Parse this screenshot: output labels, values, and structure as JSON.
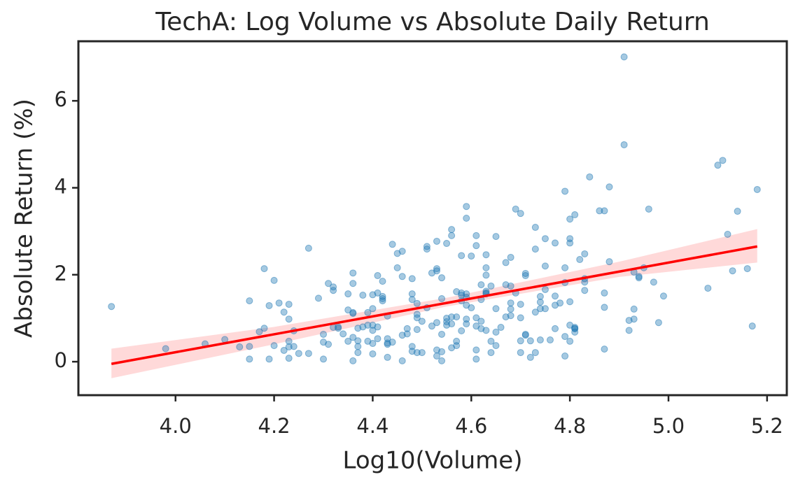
{
  "chart_data": {
    "type": "scatter",
    "title": "TechA: Log Volume vs Absolute Daily Return",
    "xlabel": "Log10(Volume)",
    "ylabel": "Absolute Return (%)",
    "xlim": [
      3.803,
      5.24
    ],
    "ylim": [
      -0.77,
      7.37
    ],
    "xticks": [
      {
        "value": 4.0,
        "label": "4.0"
      },
      4.2,
      4.4,
      4.6,
      4.8,
      {
        "value": 5.0,
        "label": "5.0"
      },
      5.2
    ],
    "yticks": [
      0,
      2,
      4,
      6
    ],
    "series": [
      {
        "color": "#1f77b4",
        "x": [
          3.87,
          3.98,
          4.06,
          4.1,
          4.13,
          4.15,
          4.15,
          4.15,
          4.17,
          4.18,
          4.18,
          4.19,
          4.19,
          4.2,
          4.2,
          4.21,
          4.22,
          4.22,
          4.23,
          4.23,
          4.23,
          4.23,
          4.23,
          4.24,
          4.24,
          4.25,
          4.27,
          4.27,
          4.29,
          4.3,
          4.3,
          4.3,
          4.31,
          4.31,
          4.32,
          4.32,
          4.32,
          4.33,
          4.33,
          4.34,
          4.35,
          4.35,
          4.35,
          4.36,
          4.36,
          4.36,
          4.36,
          4.36,
          4.36,
          4.37,
          4.37,
          4.37,
          4.37,
          4.38,
          4.38,
          4.39,
          4.39,
          4.39,
          4.4,
          4.4,
          4.4,
          4.4,
          4.4,
          4.4,
          4.41,
          4.41,
          4.41,
          4.41,
          4.42,
          4.42,
          4.42,
          4.42,
          4.43,
          4.43,
          4.43,
          4.43,
          4.43,
          4.44,
          4.44,
          4.45,
          4.45,
          4.46,
          4.46,
          4.46,
          4.46,
          4.47,
          4.47,
          4.48,
          4.48,
          4.48,
          4.48,
          4.48,
          4.49,
          4.49,
          4.49,
          4.49,
          4.49,
          4.5,
          4.5,
          4.51,
          4.51,
          4.51,
          4.52,
          4.52,
          4.53,
          4.53,
          4.53,
          4.53,
          4.53,
          4.53,
          4.54,
          4.54,
          4.54,
          4.54,
          4.54,
          4.55,
          4.55,
          4.55,
          4.55,
          4.56,
          4.56,
          4.56,
          4.56,
          4.56,
          4.57,
          4.57,
          4.57,
          4.57,
          4.58,
          4.58,
          4.58,
          4.58,
          4.58,
          4.59,
          4.59,
          4.59,
          4.59,
          4.59,
          4.59,
          4.59,
          4.6,
          4.6,
          4.61,
          4.61,
          4.61,
          4.61,
          4.61,
          4.61,
          4.62,
          4.62,
          4.62,
          4.62,
          4.63,
          4.63,
          4.63,
          4.63,
          4.63,
          4.63,
          4.63,
          4.64,
          4.64,
          4.64,
          4.65,
          4.65,
          4.65,
          4.65,
          4.66,
          4.67,
          4.67,
          4.67,
          4.68,
          4.68,
          4.68,
          4.68,
          4.68,
          4.69,
          4.69,
          4.7,
          4.7,
          4.7,
          4.7,
          4.7,
          4.71,
          4.71,
          4.71,
          4.71,
          4.72,
          4.72,
          4.73,
          4.73,
          4.73,
          4.73,
          4.74,
          4.74,
          4.74,
          4.74,
          4.75,
          4.75,
          4.75,
          4.75,
          4.76,
          4.77,
          4.77,
          4.77,
          4.77,
          4.78,
          4.79,
          4.79,
          4.79,
          4.79,
          4.79,
          4.8,
          4.8,
          4.8,
          4.8,
          4.8,
          4.8,
          4.81,
          4.81,
          4.81,
          4.81,
          4.81,
          4.82,
          4.83,
          4.83,
          4.83,
          4.83,
          4.84,
          4.86,
          4.87,
          4.87,
          4.87,
          4.87,
          4.88,
          4.88,
          4.91,
          4.91,
          4.92,
          4.92,
          4.93,
          4.93,
          4.93,
          4.94,
          4.94,
          4.95,
          4.96,
          4.97,
          4.98,
          4.99,
          5.08,
          5.1,
          5.11,
          5.12,
          5.13,
          5.14,
          5.16,
          5.17,
          5.18
        ],
        "values": [
          1.27,
          0.3,
          0.41,
          0.51,
          0.34,
          1.4,
          0.35,
          0.06,
          0.69,
          2.14,
          0.77,
          0.06,
          1.29,
          0.37,
          1.87,
          1.35,
          0.26,
          1.14,
          0.98,
          1.32,
          0.47,
          0.08,
          0.34,
          0.35,
          0.71,
          0.19,
          2.61,
          0.19,
          1.46,
          0.06,
          0.63,
          0.45,
          0.4,
          1.8,
          1.72,
          1.64,
          0.79,
          0.77,
          0.8,
          0.64,
          0.47,
          1.56,
          1.19,
          1.13,
          1.11,
          0.56,
          1.8,
          2.04,
          0.02,
          0.35,
          0.77,
          0.21,
          0.48,
          0.8,
          1.53,
          0.47,
          1.13,
          0.84,
          1.54,
          0.42,
          0.84,
          0.72,
          0.18,
          1.22,
          1.58,
          1.98,
          0.8,
          0.53,
          1.4,
          1.85,
          1.45,
          1.5,
          1.05,
          0.53,
          0.4,
          0.1,
          0.43,
          2.7,
          0.45,
          2.49,
          2.16,
          2.54,
          0.02,
          1.96,
          0.61,
          0.64,
          0.76,
          1.91,
          0.35,
          1.56,
          1.43,
          0.24,
          1.34,
          1.01,
          1.09,
          0.74,
          0.21,
          0.21,
          0.93,
          2.65,
          2.59,
          1.24,
          2.04,
          0.82,
          2.14,
          0.27,
          2.77,
          2.09,
          0.9,
          0.13,
          0.02,
          1.93,
          0.23,
          0.63,
          1.45,
          2.72,
          1.0,
          0.92,
          0.84,
          2.9,
          0.32,
          3.04,
          0.87,
          1.03,
          1.03,
          0.37,
          1.61,
          0.47,
          1.53,
          0.71,
          1.58,
          2.44,
          1.4,
          3.3,
          1.56,
          1.3,
          3.57,
          1.48,
          0.98,
          0.87,
          1.24,
          2.43,
          0.82,
          0.06,
          0.27,
          1.01,
          2.67,
          2.9,
          1.77,
          1.43,
          0.93,
          0.76,
          0.72,
          1.62,
          1.58,
          2.46,
          2.16,
          1.99,
          1.56,
          0.47,
          0.21,
          1.74,
          0.68,
          1.22,
          0.37,
          2.88,
          0.79,
          2.28,
          1.03,
          1.77,
          1.35,
          1.74,
          1.21,
          1.06,
          2.4,
          3.51,
          1.58,
          3.41,
          1.01,
          0.21,
          1.32,
          0.48,
          2.03,
          0.61,
          1.98,
          0.63,
          0.1,
          0.48,
          2.59,
          3.09,
          0.21,
          1.14,
          1.37,
          1.5,
          0.5,
          1.22,
          1.66,
          2.2,
          1.22,
          2.83,
          0.5,
          2.73,
          1.3,
          0.76,
          1.51,
          1.35,
          1.82,
          0.13,
          0.58,
          3.92,
          2.16,
          2.83,
          2.73,
          3.28,
          1.38,
          0.47,
          0.84,
          3.38,
          0.76,
          0.76,
          0.79,
          0.68,
          2.35,
          1.91,
          1.64,
          1.83,
          2.48,
          4.25,
          3.47,
          1.25,
          0.29,
          1.58,
          3.47,
          2.3,
          4.02,
          7.01,
          4.99,
          0.72,
          0.95,
          2.06,
          1.21,
          0.98,
          1.96,
          1.93,
          2.16,
          3.51,
          1.83,
          0.9,
          1.51,
          1.69,
          4.52,
          4.63,
          2.93,
          2.09,
          3.46,
          2.14,
          0.82,
          3.96
        ]
      }
    ],
    "regression": {
      "color": "#ff0000",
      "x": [
        3.87,
        5.18
      ],
      "values": [
        -0.05,
        2.65
      ]
    },
    "confidence_band": {
      "color": "#ff0000",
      "x": [
        3.87,
        4.2,
        4.55,
        4.9,
        5.18
      ],
      "lower": [
        -0.38,
        0.4,
        1.27,
        1.95,
        2.28
      ],
      "upper": [
        0.3,
        0.8,
        1.47,
        2.3,
        3.05
      ]
    }
  }
}
